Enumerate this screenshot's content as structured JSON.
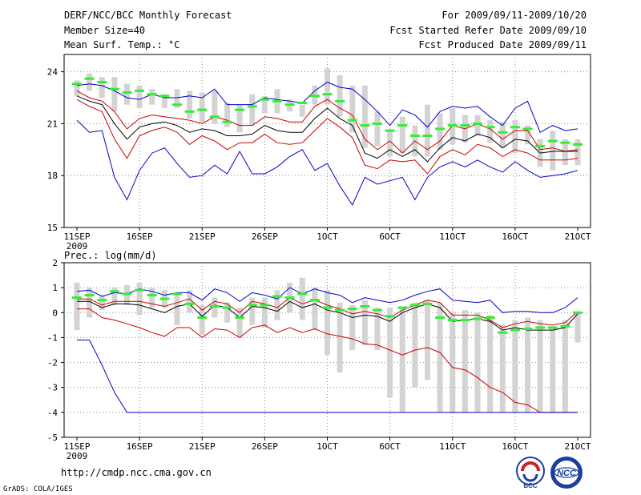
{
  "header": {
    "title": "DERF/NCC/BCC Monthly Forecast",
    "member_size": "Member Size=40",
    "variable": "Mean Surf. Temp.: °C",
    "period": "For 2009/09/11-2009/10/20",
    "started": "Fcst Started Refer Date 2009/09/10",
    "produced": "Fcst Produced Date 2009/09/11"
  },
  "footer": {
    "url": "http://cmdp.ncc.cma.gov.cn",
    "grads": "GrADS: COLA/IGES",
    "logo_bcc": "BCC",
    "logo_ncc": "NCC"
  },
  "colors": {
    "max_min": "#0000cc",
    "spread": "#cc0000",
    "mean": "#000000",
    "box": "#d3d3d3",
    "marker": "#33ee33",
    "grid": "#888888"
  },
  "chart_data": [
    {
      "type": "line",
      "title": "",
      "ylabel": "",
      "xlabel": "",
      "ylim": [
        15,
        25
      ],
      "yticks": [
        15,
        18,
        21,
        24
      ],
      "xticks": [
        {
          "day": 0,
          "label": "11SEP",
          "sub": "2009"
        },
        {
          "day": 5,
          "label": "16SEP"
        },
        {
          "day": 10,
          "label": "21SEP"
        },
        {
          "day": 15,
          "label": "26SEP"
        },
        {
          "day": 20,
          "label": "1OCT"
        },
        {
          "day": 25,
          "label": "6OCT"
        },
        {
          "day": 30,
          "label": "11OCT"
        },
        {
          "day": 35,
          "label": "16OCT"
        },
        {
          "day": 40,
          "label": "21OCT"
        }
      ],
      "series": [
        {
          "name": "max",
          "color": "#0000cc",
          "values": [
            23.2,
            23.3,
            23.2,
            22.9,
            22.5,
            22.4,
            22.7,
            22.5,
            22.5,
            22.6,
            22.5,
            23.0,
            22.1,
            22.1,
            22.1,
            22.5,
            22.4,
            22.3,
            22.2,
            22.9,
            23.4,
            23.1,
            23.0,
            22.4,
            21.7,
            20.9,
            21.8,
            21.5,
            20.8,
            21.7,
            22.0,
            21.9,
            22.0,
            21.4,
            20.9,
            21.9,
            22.3,
            20.5,
            20.9,
            20.6,
            20.7
          ]
        },
        {
          "name": "spread_upper",
          "color": "#cc0000",
          "values": [
            22.9,
            22.5,
            22.3,
            21.7,
            20.7,
            21.3,
            21.5,
            21.4,
            21.3,
            21.2,
            21.0,
            21.4,
            21.2,
            20.9,
            20.9,
            21.4,
            21.3,
            21.1,
            21.1,
            22.0,
            22.4,
            21.9,
            21.5,
            20.1,
            19.5,
            20.0,
            19.3,
            20.0,
            19.5,
            20.0,
            20.9,
            20.7,
            21.0,
            20.7,
            20.1,
            20.6,
            20.6,
            19.5,
            19.6,
            19.4,
            19.5
          ]
        },
        {
          "name": "mean",
          "color": "#000000",
          "values": [
            22.6,
            22.3,
            22.1,
            21.0,
            20.1,
            20.8,
            21.0,
            21.1,
            20.9,
            20.5,
            20.7,
            20.6,
            20.3,
            20.3,
            20.4,
            20.9,
            20.6,
            20.5,
            20.5,
            21.3,
            21.9,
            21.3,
            20.9,
            19.3,
            19.0,
            19.5,
            19.1,
            19.5,
            18.8,
            19.6,
            20.2,
            20.0,
            20.4,
            20.2,
            19.6,
            20.1,
            20.0,
            19.3,
            19.4,
            19.4,
            19.4
          ]
        },
        {
          "name": "spread_lower",
          "color": "#cc0000",
          "values": [
            22.4,
            22.0,
            21.7,
            20.1,
            19.0,
            20.3,
            20.6,
            20.8,
            20.5,
            19.8,
            20.3,
            20.0,
            19.5,
            19.9,
            19.9,
            20.4,
            19.9,
            19.8,
            19.9,
            20.6,
            21.3,
            20.8,
            20.2,
            18.6,
            18.4,
            18.9,
            18.8,
            18.9,
            18.1,
            19.1,
            19.5,
            19.2,
            19.8,
            19.6,
            19.1,
            19.5,
            19.3,
            18.9,
            18.9,
            18.9,
            19.0
          ]
        },
        {
          "name": "min",
          "color": "#0000cc",
          "values": [
            21.2,
            20.5,
            20.6,
            17.9,
            16.6,
            18.3,
            19.3,
            19.6,
            18.7,
            17.9,
            18.0,
            18.6,
            18.1,
            19.4,
            18.1,
            18.1,
            18.5,
            19.1,
            19.5,
            18.3,
            18.7,
            17.4,
            16.3,
            17.9,
            17.5,
            17.7,
            17.9,
            16.6,
            17.9,
            18.5,
            18.8,
            18.5,
            18.9,
            18.5,
            18.2,
            18.8,
            18.3,
            17.9,
            18.0,
            18.1,
            18.3
          ]
        }
      ],
      "boxes": [
        [
          22.6,
          23.5
        ],
        [
          22.9,
          23.9
        ],
        [
          22.5,
          23.7
        ],
        [
          21.7,
          23.7
        ],
        [
          22.1,
          23.3
        ],
        [
          21.9,
          23.2
        ],
        [
          22.1,
          23.0
        ],
        [
          21.9,
          22.7
        ],
        [
          21.9,
          23.0
        ],
        [
          21.3,
          22.9
        ],
        [
          21.1,
          22.8
        ],
        [
          21.0,
          22.9
        ],
        [
          20.8,
          22.2
        ],
        [
          20.5,
          22.1
        ],
        [
          20.9,
          22.7
        ],
        [
          21.6,
          22.6
        ],
        [
          21.6,
          23.0
        ],
        [
          21.7,
          22.4
        ],
        [
          21.4,
          22.1
        ],
        [
          22.1,
          23.2
        ],
        [
          22.1,
          24.2
        ],
        [
          21.4,
          23.8
        ],
        [
          20.5,
          23.2
        ],
        [
          19.6,
          23.2
        ],
        [
          19.7,
          21.7
        ],
        [
          19.1,
          20.6
        ],
        [
          19.3,
          21.4
        ],
        [
          19.1,
          20.9
        ],
        [
          19.1,
          22.1
        ],
        [
          19.5,
          21.6
        ],
        [
          19.8,
          21.9
        ],
        [
          19.9,
          21.5
        ],
        [
          20.3,
          21.5
        ],
        [
          19.9,
          21.2
        ],
        [
          19.6,
          21.1
        ],
        [
          19.3,
          21.2
        ],
        [
          19.8,
          20.9
        ],
        [
          18.5,
          20.1
        ],
        [
          18.3,
          20.6
        ],
        [
          18.6,
          20.1
        ],
        [
          18.6,
          20.1
        ]
      ],
      "markers": [
        23.3,
        23.6,
        23.4,
        23.0,
        22.8,
        22.9,
        22.7,
        22.6,
        22.1,
        21.7,
        21.8,
        21.4,
        21.1,
        21.8,
        22.0,
        22.4,
        22.3,
        22.1,
        22.2,
        22.6,
        22.7,
        22.3,
        21.2,
        20.9,
        21.0,
        20.6,
        20.9,
        20.3,
        20.3,
        20.7,
        20.9,
        20.9,
        21.0,
        20.8,
        20.5,
        20.8,
        20.7,
        19.7,
        20.0,
        19.9,
        19.8
      ]
    },
    {
      "type": "line",
      "title": "Prec.: log(mm/d)",
      "ylabel": "",
      "xlabel": "",
      "ylim": [
        -5,
        2
      ],
      "yticks": [
        -5,
        -4,
        -3,
        -2,
        -1,
        0,
        1,
        2
      ],
      "xticks": [
        {
          "day": 0,
          "label": "11SEP",
          "sub": "2009"
        },
        {
          "day": 5,
          "label": "16SEP"
        },
        {
          "day": 10,
          "label": "21SEP"
        },
        {
          "day": 15,
          "label": "26SEP"
        },
        {
          "day": 20,
          "label": "1OCT"
        },
        {
          "day": 25,
          "label": "6OCT"
        },
        {
          "day": 30,
          "label": "11OCT"
        },
        {
          "day": 35,
          "label": "16OCT"
        },
        {
          "day": 40,
          "label": "21OCT"
        }
      ],
      "series": [
        {
          "name": "max",
          "color": "#0000cc",
          "values": [
            0.85,
            0.9,
            0.65,
            0.8,
            0.75,
            0.95,
            0.85,
            0.7,
            0.8,
            0.8,
            0.5,
            0.95,
            0.8,
            0.45,
            0.8,
            0.7,
            0.55,
            1.0,
            0.75,
            0.95,
            0.8,
            0.7,
            0.4,
            0.6,
            0.5,
            0.4,
            0.5,
            0.7,
            0.85,
            0.95,
            0.5,
            0.45,
            0.4,
            0.5,
            0.0,
            0.05,
            0.05,
            0.0,
            0.0,
            0.2,
            0.6
          ]
        },
        {
          "name": "spread_upper",
          "color": "#cc0000",
          "values": [
            0.55,
            0.55,
            0.3,
            0.45,
            0.45,
            0.45,
            0.35,
            0.25,
            0.4,
            0.55,
            0.1,
            0.45,
            0.35,
            0.0,
            0.45,
            0.35,
            0.2,
            0.6,
            0.35,
            0.5,
            0.3,
            0.15,
            -0.05,
            0.05,
            -0.05,
            -0.2,
            0.1,
            0.3,
            0.5,
            0.4,
            -0.1,
            -0.1,
            -0.1,
            -0.3,
            -0.6,
            -0.45,
            -0.35,
            -0.45,
            -0.5,
            -0.4,
            0.05
          ]
        },
        {
          "name": "mean",
          "color": "#000000",
          "values": [
            0.45,
            0.45,
            0.2,
            0.35,
            0.35,
            0.3,
            0.15,
            0.0,
            0.25,
            0.35,
            -0.15,
            0.3,
            0.2,
            -0.2,
            0.25,
            0.2,
            0.05,
            0.45,
            0.2,
            0.35,
            0.1,
            0.0,
            -0.2,
            -0.1,
            -0.15,
            -0.35,
            0.0,
            0.2,
            0.35,
            0.2,
            -0.35,
            -0.3,
            -0.25,
            -0.35,
            -0.7,
            -0.6,
            -0.7,
            -0.7,
            -0.7,
            -0.6,
            -0.05
          ]
        },
        {
          "name": "spread_lower",
          "color": "#cc0000",
          "values": [
            0.15,
            0.15,
            -0.2,
            -0.3,
            -0.45,
            -0.6,
            -0.8,
            -0.95,
            -0.6,
            -0.6,
            -1.0,
            -0.65,
            -0.7,
            -1.0,
            -0.6,
            -0.5,
            -0.8,
            -0.6,
            -0.8,
            -0.65,
            -0.85,
            -0.95,
            -1.05,
            -1.25,
            -1.3,
            -1.5,
            -1.7,
            -1.5,
            -1.4,
            -1.6,
            -2.2,
            -2.3,
            -2.6,
            -3.0,
            -3.2,
            -3.6,
            -3.7,
            -4.0,
            -4.0,
            -4.0,
            -4.0
          ]
        },
        {
          "name": "min",
          "color": "#0000cc",
          "values": [
            -1.1,
            -1.1,
            -2.1,
            -3.2,
            -4.0,
            -4.0,
            -4.0,
            -4.0,
            -4.0,
            -4.0,
            -4.0,
            -4.0,
            -4.0,
            -4.0,
            -4.0,
            -4.0,
            -4.0,
            -4.0,
            -4.0,
            -4.0,
            -4.0,
            -4.0,
            -4.0,
            -4.0,
            -4.0,
            -4.0,
            -4.0,
            -4.0,
            -4.0,
            -4.0,
            -4.0,
            -4.0,
            -4.0,
            -4.0,
            -4.0,
            -4.0,
            -4.0,
            -4.0,
            -4.0,
            -4.0,
            -4.0
          ]
        },
        {
          "name": "max_start",
          "color": "#0000cc",
          "values": []
        }
      ],
      "boxes": [
        [
          -0.7,
          1.2
        ],
        [
          -0.2,
          1.0
        ],
        [
          0.1,
          0.7
        ],
        [
          0.3,
          1.0
        ],
        [
          0.3,
          1.1
        ],
        [
          -0.1,
          1.2
        ],
        [
          0.2,
          1.0
        ],
        [
          0.2,
          0.9
        ],
        [
          -0.5,
          0.8
        ],
        [
          0.0,
          0.9
        ],
        [
          -0.9,
          0.3
        ],
        [
          -0.2,
          0.6
        ],
        [
          -0.4,
          0.4
        ],
        [
          -1.0,
          0.2
        ],
        [
          -0.5,
          0.6
        ],
        [
          -0.6,
          0.6
        ],
        [
          -0.3,
          0.9
        ],
        [
          0.0,
          1.2
        ],
        [
          -0.3,
          1.4
        ],
        [
          -0.7,
          1.0
        ],
        [
          -1.7,
          0.9
        ],
        [
          -2.4,
          0.4
        ],
        [
          -1.5,
          0.3
        ],
        [
          -1.3,
          0.5
        ],
        [
          -1.5,
          0.2
        ],
        [
          -3.4,
          0.2
        ],
        [
          -4.0,
          0.2
        ],
        [
          -3.0,
          0.4
        ],
        [
          -2.7,
          0.5
        ],
        [
          -4.0,
          0.4
        ],
        [
          -4.0,
          0.0
        ],
        [
          -4.0,
          0.1
        ],
        [
          -4.0,
          0.0
        ],
        [
          -4.0,
          -0.1
        ],
        [
          -4.0,
          -0.5
        ],
        [
          -4.0,
          -0.3
        ],
        [
          -4.0,
          -0.2
        ],
        [
          -4.0,
          -0.3
        ],
        [
          -4.0,
          -0.6
        ],
        [
          -4.0,
          -0.3
        ],
        [
          -1.2,
          0.0
        ]
      ],
      "markers": [
        0.6,
        0.7,
        0.5,
        0.85,
        0.75,
        0.9,
        0.7,
        0.55,
        0.75,
        0.35,
        -0.2,
        0.25,
        0.2,
        -0.2,
        0.3,
        0.3,
        0.65,
        0.6,
        0.75,
        0.5,
        0.2,
        0.1,
        0.15,
        0.25,
        0.1,
        -0.15,
        0.2,
        0.3,
        0.35,
        -0.2,
        -0.3,
        -0.3,
        -0.25,
        -0.2,
        -0.8,
        -0.7,
        -0.65,
        -0.6,
        -0.6,
        -0.55,
        0.0
      ]
    }
  ]
}
